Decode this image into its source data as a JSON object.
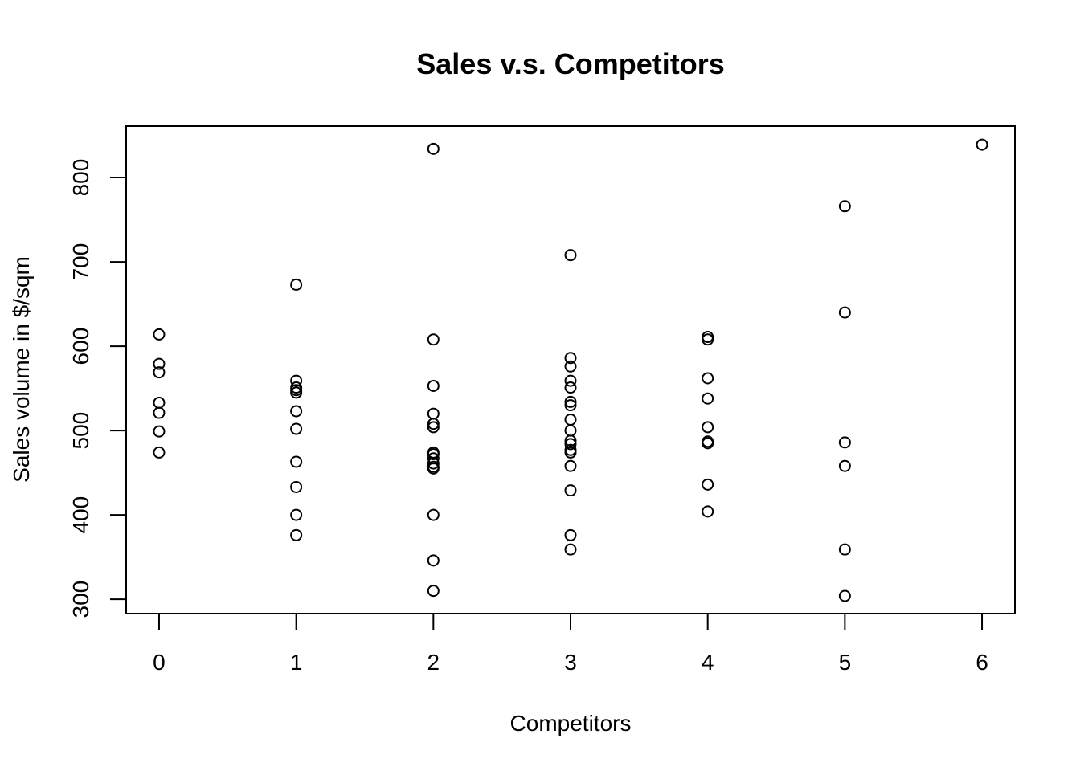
{
  "chart_data": {
    "type": "scatter",
    "title": "Sales v.s. Competitors",
    "xlabel": "Competitors",
    "ylabel": "Sales volume in $/sqm",
    "xlim": [
      -0.24,
      6.24
    ],
    "ylim": [
      283,
      861
    ],
    "x_ticks": [
      "0",
      "1",
      "2",
      "3",
      "4",
      "5",
      "6"
    ],
    "y_ticks": [
      "300",
      "400",
      "500",
      "600",
      "700",
      "800"
    ],
    "marker": "open-circle",
    "color": "#000000",
    "points": [
      {
        "x": 0,
        "y": 614
      },
      {
        "x": 0,
        "y": 579
      },
      {
        "x": 0,
        "y": 569
      },
      {
        "x": 0,
        "y": 533
      },
      {
        "x": 0,
        "y": 521
      },
      {
        "x": 0,
        "y": 499
      },
      {
        "x": 0,
        "y": 474
      },
      {
        "x": 1,
        "y": 673
      },
      {
        "x": 1,
        "y": 559
      },
      {
        "x": 1,
        "y": 551
      },
      {
        "x": 1,
        "y": 548
      },
      {
        "x": 1,
        "y": 545
      },
      {
        "x": 1,
        "y": 523
      },
      {
        "x": 1,
        "y": 502
      },
      {
        "x": 1,
        "y": 463
      },
      {
        "x": 1,
        "y": 433
      },
      {
        "x": 1,
        "y": 400
      },
      {
        "x": 1,
        "y": 376
      },
      {
        "x": 2,
        "y": 834
      },
      {
        "x": 2,
        "y": 608
      },
      {
        "x": 2,
        "y": 553
      },
      {
        "x": 2,
        "y": 520
      },
      {
        "x": 2,
        "y": 508
      },
      {
        "x": 2,
        "y": 504
      },
      {
        "x": 2,
        "y": 474
      },
      {
        "x": 2,
        "y": 472
      },
      {
        "x": 2,
        "y": 467
      },
      {
        "x": 2,
        "y": 461
      },
      {
        "x": 2,
        "y": 457
      },
      {
        "x": 2,
        "y": 455
      },
      {
        "x": 2,
        "y": 400
      },
      {
        "x": 2,
        "y": 346
      },
      {
        "x": 2,
        "y": 310
      },
      {
        "x": 3,
        "y": 708
      },
      {
        "x": 3,
        "y": 586
      },
      {
        "x": 3,
        "y": 576
      },
      {
        "x": 3,
        "y": 559
      },
      {
        "x": 3,
        "y": 551
      },
      {
        "x": 3,
        "y": 534
      },
      {
        "x": 3,
        "y": 530
      },
      {
        "x": 3,
        "y": 513
      },
      {
        "x": 3,
        "y": 500
      },
      {
        "x": 3,
        "y": 488
      },
      {
        "x": 3,
        "y": 484
      },
      {
        "x": 3,
        "y": 477
      },
      {
        "x": 3,
        "y": 474
      },
      {
        "x": 3,
        "y": 458
      },
      {
        "x": 3,
        "y": 429
      },
      {
        "x": 3,
        "y": 376
      },
      {
        "x": 3,
        "y": 359
      },
      {
        "x": 4,
        "y": 611
      },
      {
        "x": 4,
        "y": 608
      },
      {
        "x": 4,
        "y": 562
      },
      {
        "x": 4,
        "y": 538
      },
      {
        "x": 4,
        "y": 504
      },
      {
        "x": 4,
        "y": 487
      },
      {
        "x": 4,
        "y": 485
      },
      {
        "x": 4,
        "y": 436
      },
      {
        "x": 4,
        "y": 404
      },
      {
        "x": 5,
        "y": 766
      },
      {
        "x": 5,
        "y": 640
      },
      {
        "x": 5,
        "y": 486
      },
      {
        "x": 5,
        "y": 458
      },
      {
        "x": 5,
        "y": 359
      },
      {
        "x": 5,
        "y": 304
      },
      {
        "x": 6,
        "y": 839
      }
    ]
  }
}
